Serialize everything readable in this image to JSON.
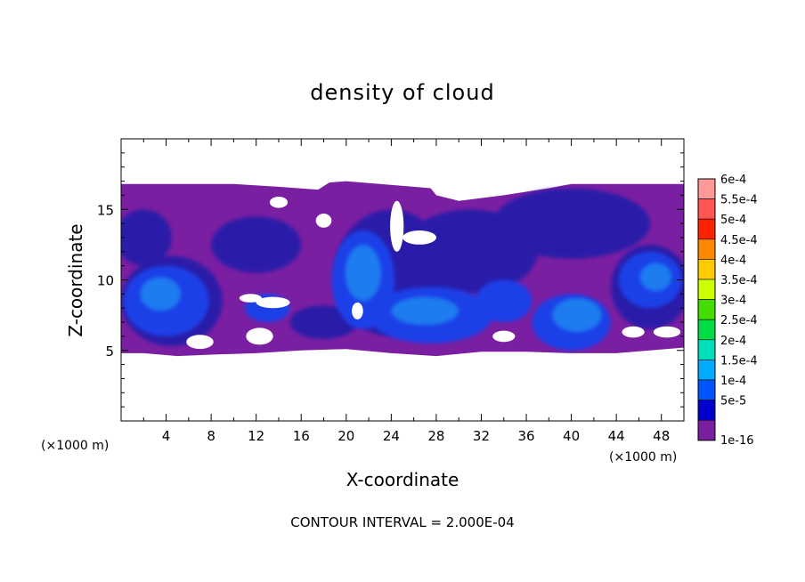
{
  "chart_data": {
    "type": "heatmap",
    "title": "density of cloud",
    "xlabel": "X-coordinate",
    "ylabel": "Z-coordinate",
    "x_unit": "(×1000 m)",
    "x_ticks": [
      4,
      8,
      12,
      16,
      20,
      24,
      28,
      32,
      36,
      40,
      44,
      48
    ],
    "y_ticks": [
      5,
      10,
      15
    ],
    "xlim": [
      0,
      50
    ],
    "ylim": [
      0,
      20
    ],
    "footer": "CONTOUR INTERVAL = 2.000E-04",
    "colorbar": [
      {
        "label": "6e-4",
        "color": "#ff9999"
      },
      {
        "label": "5.5e-4",
        "color": "#ff5555"
      },
      {
        "label": "5e-4",
        "color": "#ff2200"
      },
      {
        "label": "4.5e-4",
        "color": "#ff8800"
      },
      {
        "label": "4e-4",
        "color": "#ffcc00"
      },
      {
        "label": "3.5e-4",
        "color": "#ccff00"
      },
      {
        "label": "3e-4",
        "color": "#44dd00"
      },
      {
        "label": "2.5e-4",
        "color": "#00dd44"
      },
      {
        "label": "2e-4",
        "color": "#00ddbb"
      },
      {
        "label": "1.5e-4",
        "color": "#00aaff"
      },
      {
        "label": "1e-4",
        "color": "#0055ff"
      },
      {
        "label": "5e-5",
        "color": "#0000cc"
      },
      {
        "label": "1e-16",
        "color": "#7b1fa2"
      }
    ],
    "field": {
      "base_color": "#7b1fa2",
      "levels": [
        {
          "level": "5e-5",
          "color": "#2a1fa8",
          "regions": [
            {
              "cx": 4.5,
              "cz": 8.5,
              "rx": 4.5,
              "rz": 3.2
            },
            {
              "cx": 18,
              "cz": 7,
              "rx": 3.0,
              "rz": 1.2
            },
            {
              "cx": 24,
              "cz": 10.5,
              "rx": 5.0,
              "rz": 4.5
            },
            {
              "cx": 31,
              "cz": 12,
              "rx": 6.0,
              "rz": 3.0
            },
            {
              "cx": 40,
              "cz": 14,
              "rx": 7.0,
              "rz": 2.5
            },
            {
              "cx": 47,
              "cz": 9.5,
              "rx": 3.5,
              "rz": 3.0
            },
            {
              "cx": 12,
              "cz": 12.5,
              "rx": 4.0,
              "rz": 2.0
            },
            {
              "cx": 2,
              "cz": 13,
              "rx": 2.5,
              "rz": 2.0
            }
          ]
        },
        {
          "level": "1e-4",
          "color": "#1b3fe8",
          "regions": [
            {
              "cx": 4,
              "cz": 8.5,
              "rx": 3.8,
              "rz": 2.5
            },
            {
              "cx": 21.5,
              "cz": 10,
              "rx": 2.8,
              "rz": 3.5
            },
            {
              "cx": 27.5,
              "cz": 7.5,
              "rx": 5.5,
              "rz": 2.0
            },
            {
              "cx": 34,
              "cz": 8.5,
              "rx": 2.5,
              "rz": 1.5
            },
            {
              "cx": 40,
              "cz": 7,
              "rx": 3.5,
              "rz": 2.0
            },
            {
              "cx": 47,
              "cz": 10,
              "rx": 2.8,
              "rz": 2.0
            },
            {
              "cx": 13,
              "cz": 8,
              "rx": 2.0,
              "rz": 1.0
            }
          ]
        },
        {
          "level": "1.5e-4",
          "color": "#1e7bf0",
          "regions": [
            {
              "cx": 21.5,
              "cz": 10.5,
              "rx": 1.6,
              "rz": 2.0
            },
            {
              "cx": 27,
              "cz": 7.8,
              "rx": 3.0,
              "rz": 1.0
            },
            {
              "cx": 40.5,
              "cz": 7.5,
              "rx": 2.2,
              "rz": 1.2
            },
            {
              "cx": 3.5,
              "cz": 9,
              "rx": 1.8,
              "rz": 1.2
            },
            {
              "cx": 47.5,
              "cz": 10.2,
              "rx": 1.4,
              "rz": 1.0
            }
          ]
        }
      ]
    }
  }
}
